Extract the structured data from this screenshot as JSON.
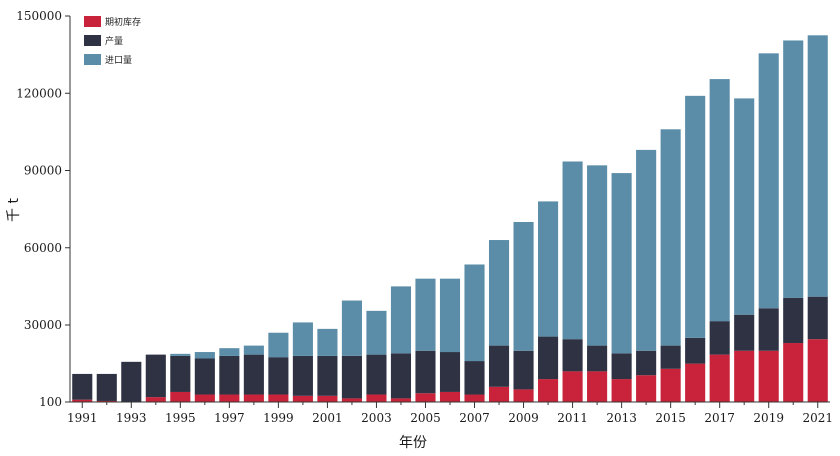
{
  "chart_data": {
    "type": "bar",
    "stacked": true,
    "xlabel": "年份",
    "ylabel": "千 t",
    "ylim": [
      100,
      150000
    ],
    "yticks": [
      "100",
      "30000",
      "60000",
      "90000",
      "120000",
      "150000"
    ],
    "ytick_values": [
      100,
      30000,
      60000,
      90000,
      120000,
      150000
    ],
    "categories": [
      "1991",
      "1992",
      "1993",
      "1994",
      "1995",
      "1996",
      "1997",
      "1998",
      "1999",
      "2000",
      "2001",
      "2002",
      "2003",
      "2004",
      "2005",
      "2006",
      "2007",
      "2008",
      "2009",
      "2010",
      "2011",
      "2012",
      "2013",
      "2014",
      "2015",
      "2016",
      "2017",
      "2018",
      "2019",
      "2020",
      "2021"
    ],
    "xtick_labels": [
      "1991",
      "1993",
      "1995",
      "1997",
      "1999",
      "2001",
      "2003",
      "2005",
      "2007",
      "2009",
      "2011",
      "2013",
      "2015",
      "2017",
      "2019",
      "2021"
    ],
    "legend_position": "top-left",
    "grid": false,
    "series": [
      {
        "name": "期初库存",
        "color": "#c8233a",
        "values": [
          1000,
          500,
          200,
          2000,
          4000,
          3000,
          3000,
          3000,
          3000,
          2500,
          2500,
          1500,
          3000,
          1500,
          3500,
          4000,
          3000,
          6000,
          5000,
          9000,
          12000,
          12000,
          9000,
          10500,
          13000,
          15000,
          18500,
          20000,
          20000,
          23000,
          24500
        ]
      },
      {
        "name": "产量",
        "color": "#2e3243",
        "values": [
          10000,
          10500,
          15500,
          16500,
          14000,
          14000,
          15000,
          15500,
          14500,
          15500,
          15500,
          16500,
          15500,
          17500,
          16500,
          15500,
          13000,
          16000,
          15000,
          16500,
          12500,
          10000,
          10000,
          9500,
          9000,
          10000,
          13000,
          14000,
          16500,
          17500,
          16500
        ]
      },
      {
        "name": "进口量",
        "color": "#5b8da8",
        "values": [
          0,
          0,
          0,
          0,
          800,
          2500,
          3000,
          3500,
          9500,
          13000,
          10500,
          21500,
          17000,
          26000,
          28000,
          28500,
          37500,
          41000,
          50000,
          52500,
          69000,
          70000,
          70000,
          78000,
          84000,
          94000,
          94000,
          84000,
          99000,
          100000,
          101500
        ]
      }
    ]
  }
}
